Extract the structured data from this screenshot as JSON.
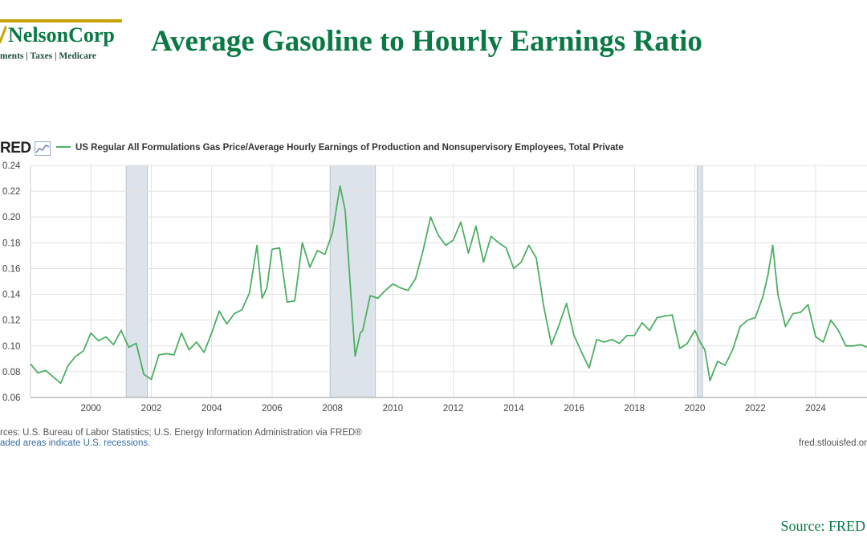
{
  "brand": {
    "name": "NelsonCorp",
    "tagline": "ments | Taxes | Medicare",
    "bar_color": "#c8a400",
    "name_color": "#0a7a45"
  },
  "page": {
    "title": "Average Gasoline to Hourly Earnings Ratio",
    "title_color": "#0a7a45",
    "source": "Source: FRED",
    "source_color": "#0a7a45"
  },
  "fred": {
    "logo_text": "RED",
    "series_label": "US Regular All Formulations Gas Price/Average Hourly Earnings of Production and Nonsupervisory Employees, Total Private",
    "sources_line": "rces: U.S. Bureau of Labor Statistics; U.S. Energy Information Administration via FRED®",
    "recession_note": "aded areas indicate U.S. recessions.",
    "url": "fred.stlouisfed.or"
  },
  "chart_data": {
    "type": "line",
    "xlim": [
      1998.0,
      2025.7
    ],
    "ylim": [
      0.06,
      0.24
    ],
    "y_ticks": [
      0.06,
      0.08,
      0.1,
      0.12,
      0.14,
      0.16,
      0.18,
      0.2,
      0.22,
      0.24
    ],
    "y_tick_labels": [
      "0.06",
      "0.08",
      "0.10",
      "0.12",
      "0.14",
      "0.16",
      "0.18",
      "0.20",
      "0.22",
      "0.24"
    ],
    "x_ticks": [
      2000,
      2002,
      2004,
      2006,
      2008,
      2010,
      2012,
      2014,
      2016,
      2018,
      2020,
      2022,
      2024
    ],
    "x_tick_labels": [
      "2000",
      "2002",
      "2004",
      "2006",
      "2008",
      "2010",
      "2012",
      "2014",
      "2016",
      "2018",
      "2020",
      "2022",
      "2024"
    ],
    "grid": true,
    "line_color": "#4caf63",
    "recession_color": "#dde3ea",
    "recessions": [
      [
        2001.17,
        2001.87
      ],
      [
        2007.92,
        2009.42
      ],
      [
        2020.08,
        2020.25
      ]
    ],
    "series": [
      {
        "name": "US Regular All Formulations Gas Price/Average Hourly Earnings of Production and Nonsupervisory Employees, Total Private",
        "x": [
          1998.0,
          1998.25,
          1998.5,
          1998.75,
          1999.0,
          1999.25,
          1999.5,
          1999.75,
          2000.0,
          2000.25,
          2000.5,
          2000.75,
          2001.0,
          2001.25,
          2001.5,
          2001.75,
          2002.0,
          2002.25,
          2002.5,
          2002.75,
          2003.0,
          2003.25,
          2003.5,
          2003.75,
          2004.0,
          2004.25,
          2004.5,
          2004.75,
          2005.0,
          2005.25,
          2005.5,
          2005.67,
          2005.83,
          2006.0,
          2006.25,
          2006.5,
          2006.75,
          2007.0,
          2007.25,
          2007.5,
          2007.75,
          2008.0,
          2008.25,
          2008.42,
          2008.58,
          2008.75,
          2008.92,
          2009.0,
          2009.25,
          2009.5,
          2009.75,
          2010.0,
          2010.25,
          2010.5,
          2010.75,
          2011.0,
          2011.25,
          2011.5,
          2011.75,
          2012.0,
          2012.25,
          2012.5,
          2012.75,
          2013.0,
          2013.25,
          2013.5,
          2013.75,
          2014.0,
          2014.25,
          2014.5,
          2014.75,
          2015.0,
          2015.25,
          2015.5,
          2015.75,
          2016.0,
          2016.25,
          2016.5,
          2016.75,
          2017.0,
          2017.25,
          2017.5,
          2017.75,
          2018.0,
          2018.25,
          2018.5,
          2018.75,
          2019.0,
          2019.25,
          2019.5,
          2019.75,
          2020.0,
          2020.17,
          2020.33,
          2020.5,
          2020.75,
          2021.0,
          2021.25,
          2021.5,
          2021.75,
          2022.0,
          2022.25,
          2022.42,
          2022.58,
          2022.75,
          2023.0,
          2023.25,
          2023.5,
          2023.75,
          2024.0,
          2024.25,
          2024.5,
          2024.75,
          2025.0,
          2025.25,
          2025.5,
          2025.7
        ],
        "y": [
          0.086,
          0.079,
          0.081,
          0.076,
          0.071,
          0.085,
          0.092,
          0.096,
          0.11,
          0.104,
          0.107,
          0.101,
          0.112,
          0.099,
          0.102,
          0.078,
          0.074,
          0.093,
          0.094,
          0.093,
          0.11,
          0.097,
          0.103,
          0.095,
          0.11,
          0.127,
          0.117,
          0.125,
          0.128,
          0.141,
          0.178,
          0.137,
          0.145,
          0.175,
          0.176,
          0.134,
          0.135,
          0.18,
          0.161,
          0.174,
          0.171,
          0.188,
          0.224,
          0.205,
          0.15,
          0.092,
          0.11,
          0.112,
          0.139,
          0.137,
          0.143,
          0.148,
          0.145,
          0.143,
          0.152,
          0.174,
          0.2,
          0.186,
          0.178,
          0.182,
          0.196,
          0.172,
          0.193,
          0.165,
          0.185,
          0.18,
          0.176,
          0.16,
          0.165,
          0.178,
          0.168,
          0.13,
          0.101,
          0.116,
          0.133,
          0.108,
          0.095,
          0.083,
          0.105,
          0.103,
          0.105,
          0.102,
          0.108,
          0.108,
          0.118,
          0.112,
          0.122,
          0.123,
          0.124,
          0.098,
          0.102,
          0.112,
          0.103,
          0.097,
          0.073,
          0.088,
          0.085,
          0.097,
          0.115,
          0.12,
          0.122,
          0.138,
          0.155,
          0.178,
          0.14,
          0.115,
          0.125,
          0.126,
          0.132,
          0.107,
          0.103,
          0.12,
          0.112,
          0.1,
          0.1,
          0.101,
          0.099
        ]
      }
    ]
  }
}
